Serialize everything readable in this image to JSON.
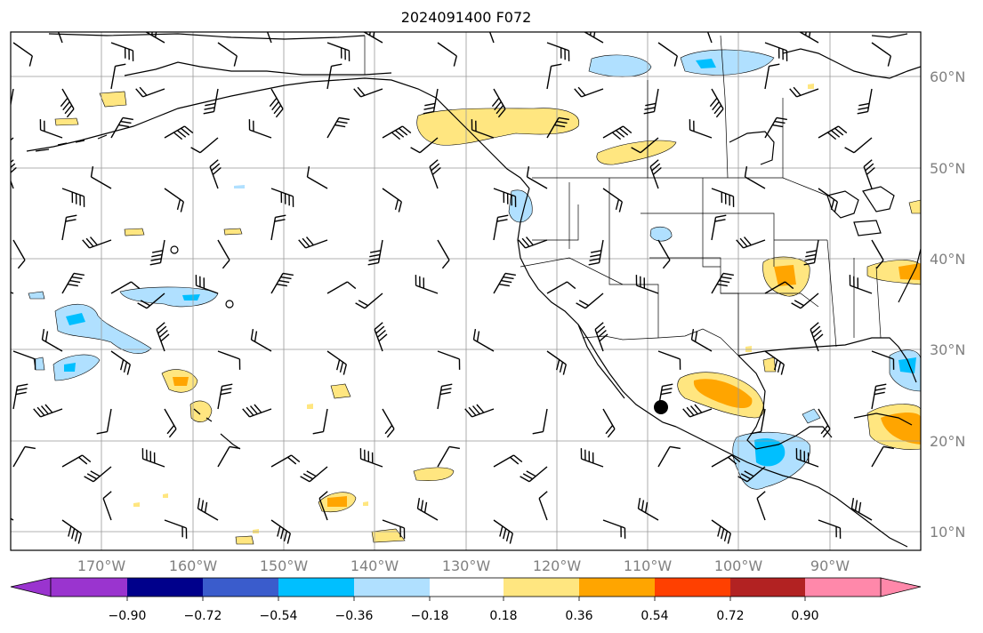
{
  "title": "2024091400 F072",
  "lat_labels": [
    "60°N",
    "50°N",
    "40°N",
    "30°N",
    "20°N",
    "10°N"
  ],
  "lon_labels": [
    "170°W",
    "160°W",
    "150°W",
    "140°W",
    "130°W",
    "120°W",
    "110°W",
    "100°W",
    "90°W"
  ],
  "colorbar": {
    "ticks": [
      "−0.90",
      "−0.72",
      "−0.54",
      "−0.36",
      "−0.18",
      "0.18",
      "0.36",
      "0.54",
      "0.72",
      "0.90"
    ],
    "colors": [
      "#9a34cf",
      "#00008b",
      "#3a5ccc",
      "#00bfff",
      "#b0e0ff",
      "#ffffff",
      "#ffe680",
      "#ffa500",
      "#ff4000",
      "#b22222",
      "#ff88aa"
    ]
  },
  "colors": {
    "light_blue": "#b0e0ff",
    "blue": "#00bfff",
    "light_yellow": "#ffe680",
    "orange": "#ffa500"
  }
}
